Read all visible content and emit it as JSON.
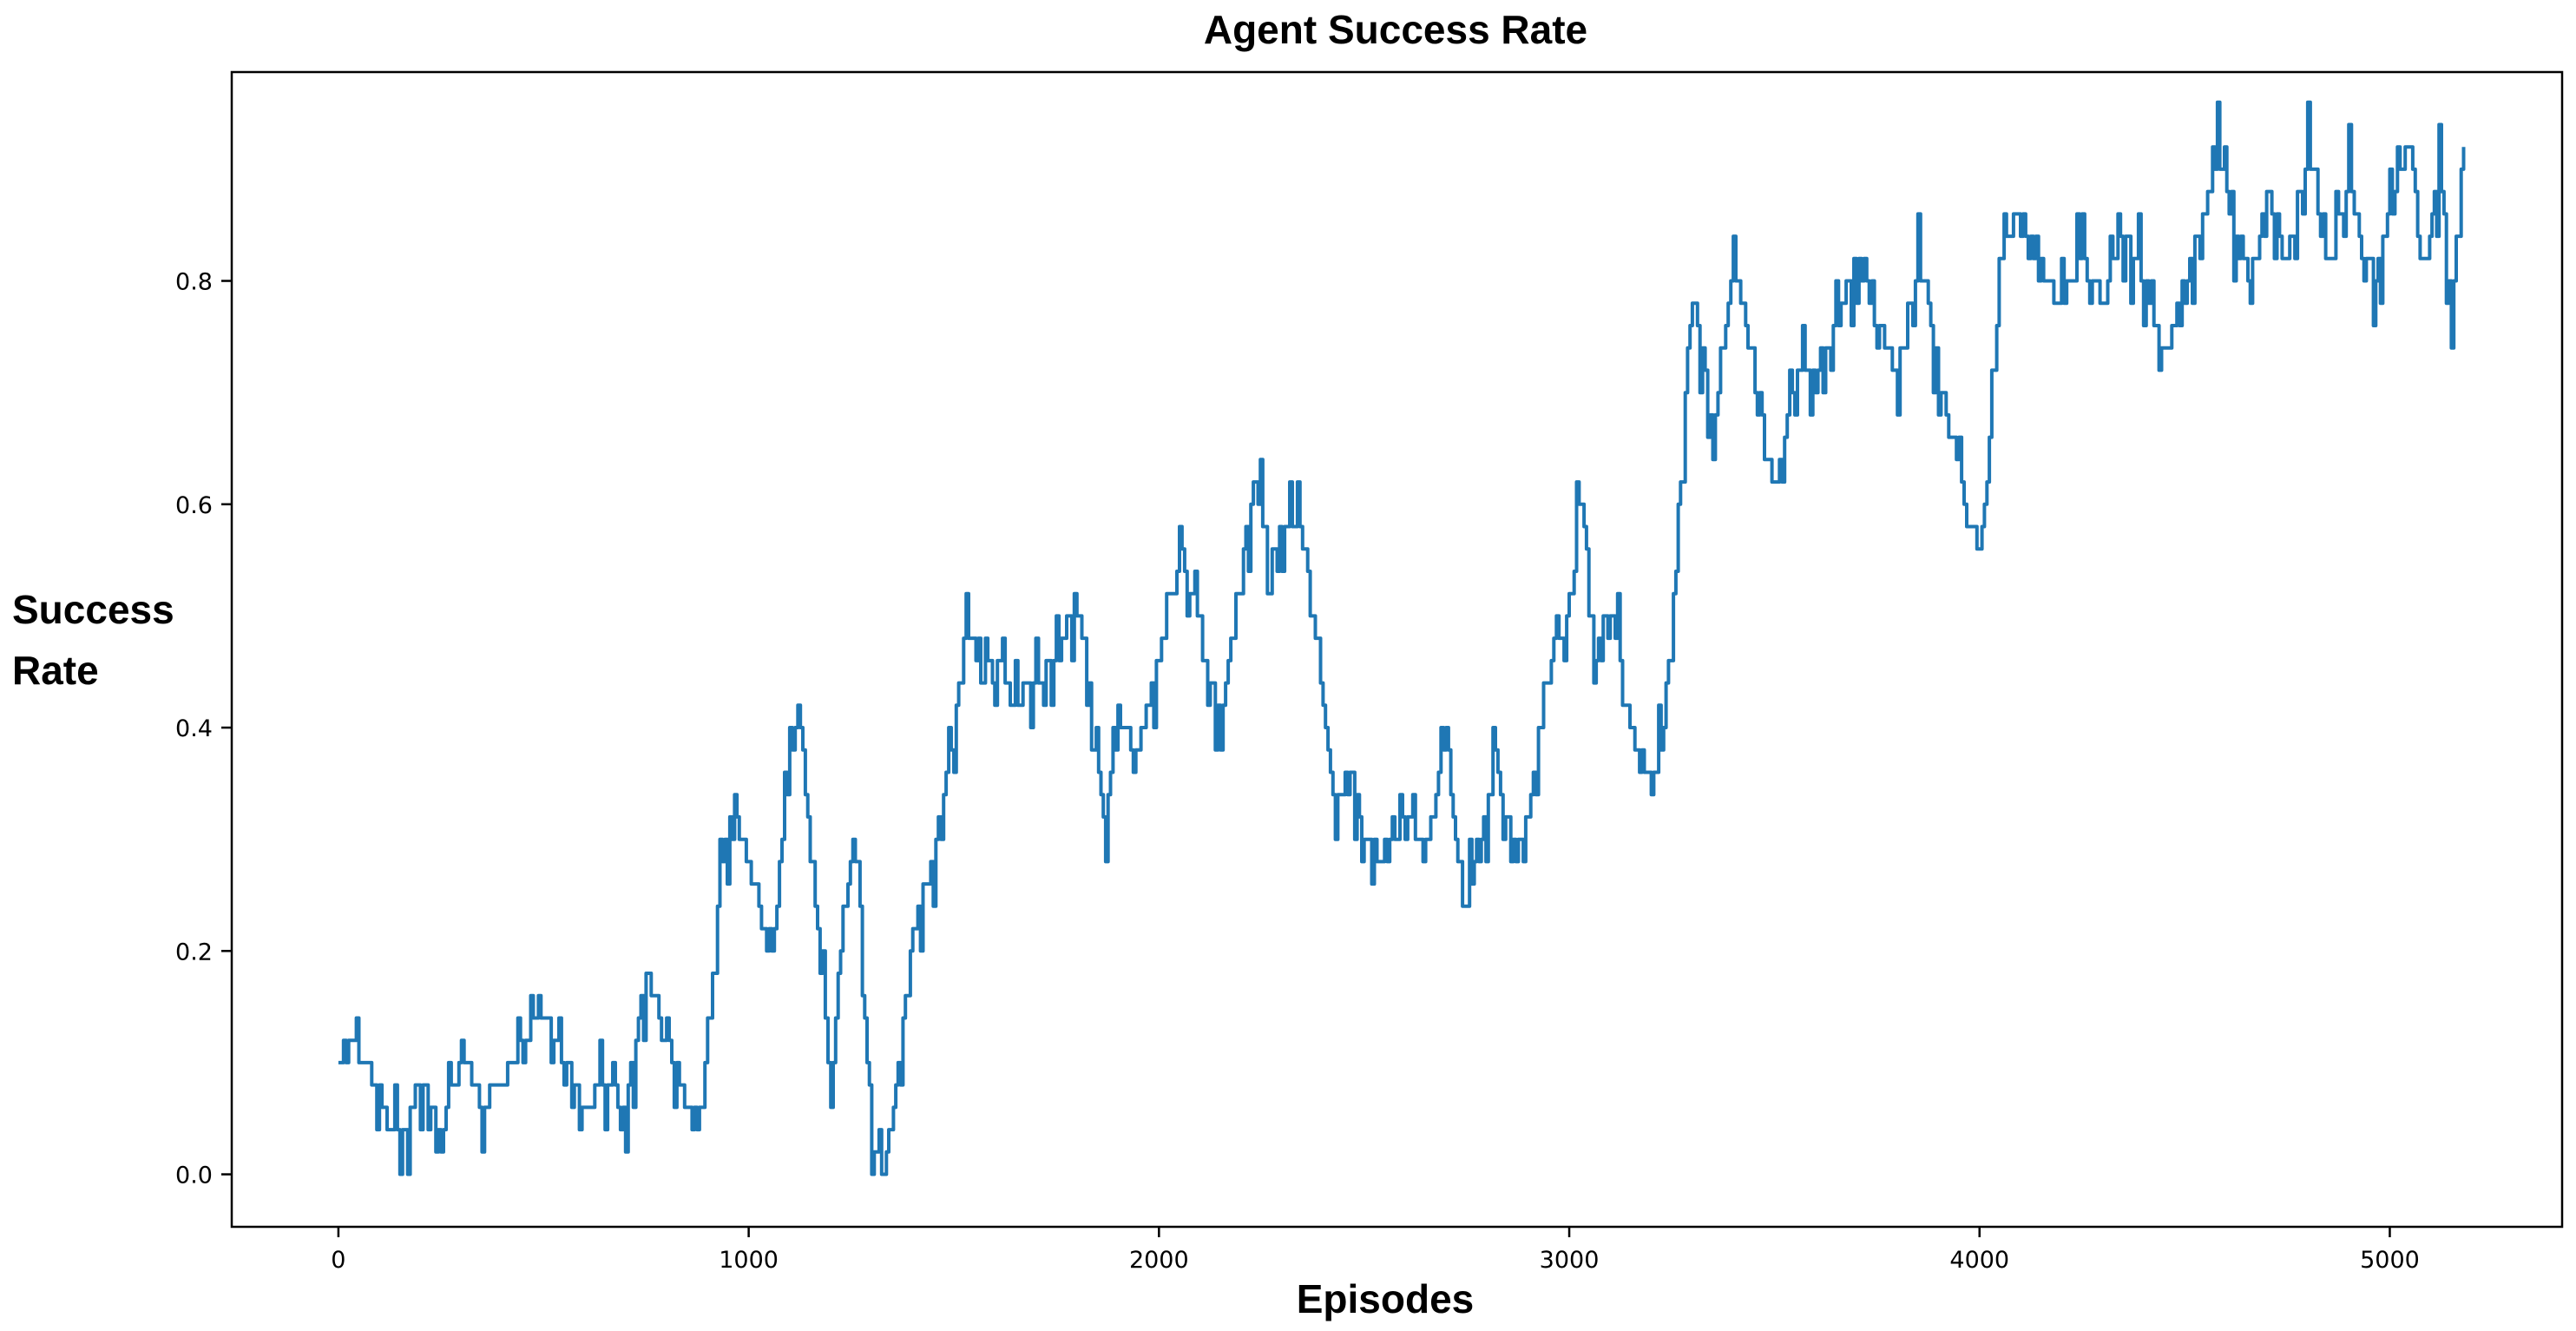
{
  "chart_data": {
    "type": "line",
    "title": "Agent Success Rate",
    "xlabel": "Episodes",
    "ylabel_lines": [
      "Success",
      "Rate"
    ],
    "xlim": [
      -260,
      5420
    ],
    "ylim": [
      -0.047,
      0.987
    ],
    "xticks": [
      0,
      1000,
      2000,
      3000,
      4000,
      5000
    ],
    "yticks": [
      0.0,
      0.2,
      0.4,
      0.6,
      0.8
    ],
    "ytick_labels": [
      "0.0",
      "0.2",
      "0.4",
      "0.6",
      "0.8"
    ],
    "grid": false,
    "legend": "none",
    "line_color": "#1f77b4",
    "series": [
      {
        "x": [
          0,
          25,
          50,
          75,
          100,
          150,
          200,
          250,
          300,
          350,
          400,
          450,
          500,
          550,
          600,
          650,
          700,
          725,
          750,
          800,
          850,
          880,
          900,
          930,
          960,
          1000,
          1050,
          1100,
          1120,
          1150,
          1180,
          1200,
          1230,
          1260,
          1300,
          1330,
          1370,
          1400,
          1450,
          1500,
          1530,
          1560,
          1600,
          1650,
          1700,
          1750,
          1800,
          1830,
          1870,
          1900,
          1950,
          2000,
          2050,
          2100,
          2150,
          2200,
          2230,
          2270,
          2300,
          2350,
          2400,
          2430,
          2460,
          2500,
          2550,
          2600,
          2650,
          2700,
          2740,
          2780,
          2820,
          2870,
          2900,
          2950,
          3000,
          3030,
          3060,
          3100,
          3130,
          3160,
          3200,
          3230,
          3260,
          3300,
          3350,
          3400,
          3430,
          3470,
          3500,
          3550,
          3600,
          3650,
          3700,
          3750,
          3800,
          3850,
          3900,
          3950,
          4000,
          4030,
          4060,
          4100,
          4150,
          4200,
          4250,
          4300,
          4350,
          4400,
          4450,
          4500,
          4550,
          4580,
          4620,
          4660,
          4700,
          4750,
          4800,
          4850,
          4900,
          4920,
          4960,
          5000,
          5050,
          5080,
          5120,
          5150,
          5180
        ],
        "y": [
          0.1,
          0.12,
          0.1,
          0.08,
          0.06,
          0.03,
          0.08,
          0.04,
          0.1,
          0.06,
          0.08,
          0.12,
          0.14,
          0.1,
          0.06,
          0.08,
          0.06,
          0.12,
          0.18,
          0.12,
          0.06,
          0.03,
          0.12,
          0.26,
          0.34,
          0.28,
          0.18,
          0.36,
          0.42,
          0.3,
          0.16,
          0.08,
          0.22,
          0.32,
          0.02,
          0.0,
          0.12,
          0.22,
          0.28,
          0.4,
          0.5,
          0.44,
          0.46,
          0.42,
          0.44,
          0.46,
          0.52,
          0.4,
          0.32,
          0.4,
          0.38,
          0.46,
          0.56,
          0.48,
          0.4,
          0.54,
          0.62,
          0.56,
          0.58,
          0.58,
          0.42,
          0.32,
          0.38,
          0.3,
          0.28,
          0.32,
          0.28,
          0.4,
          0.22,
          0.3,
          0.36,
          0.3,
          0.32,
          0.46,
          0.5,
          0.62,
          0.46,
          0.52,
          0.44,
          0.38,
          0.34,
          0.4,
          0.56,
          0.8,
          0.66,
          0.82,
          0.76,
          0.66,
          0.6,
          0.72,
          0.72,
          0.76,
          0.82,
          0.76,
          0.72,
          0.82,
          0.72,
          0.62,
          0.54,
          0.7,
          0.84,
          0.86,
          0.8,
          0.78,
          0.82,
          0.78,
          0.84,
          0.8,
          0.72,
          0.8,
          0.86,
          0.92,
          0.84,
          0.8,
          0.88,
          0.82,
          0.92,
          0.8,
          0.9,
          0.84,
          0.8,
          0.86,
          0.92,
          0.8,
          0.9,
          0.78,
          0.92
        ]
      }
    ]
  }
}
